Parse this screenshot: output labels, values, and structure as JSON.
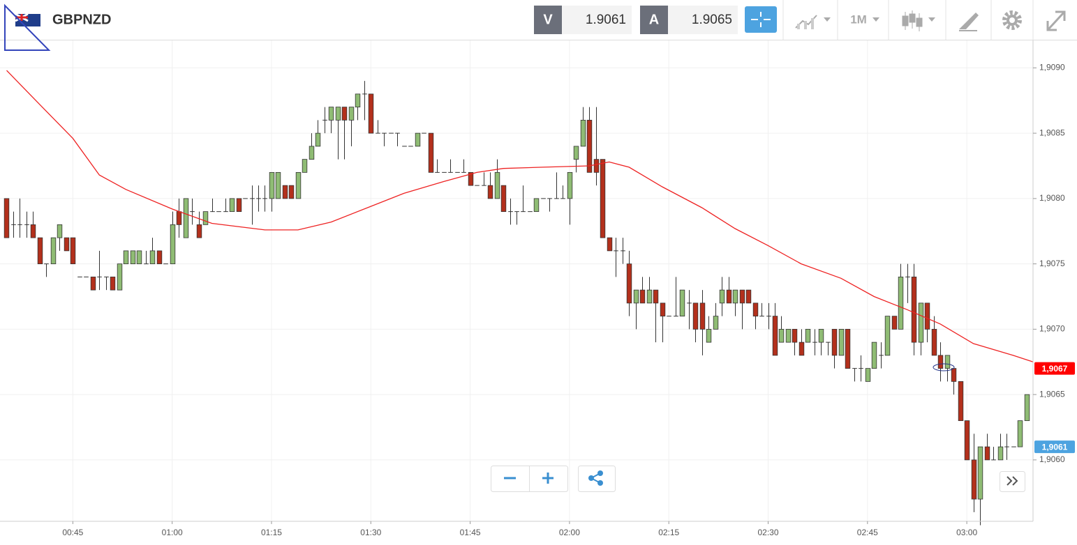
{
  "chart_data": {
    "type": "candlestick",
    "title": "GBPNZD",
    "bid": {
      "label": "V",
      "value": 1.9061
    },
    "ask": {
      "label": "A",
      "value": 1.9065
    },
    "timeframe": "1M",
    "grid": true,
    "up_color": "#8fbc74",
    "down_color": "#b3301c",
    "xlim": [
      "00:34",
      "03:10"
    ],
    "xticks": [
      "00:45",
      "01:00",
      "01:15",
      "01:30",
      "01:45",
      "02:00",
      "02:15",
      "02:30",
      "02:45",
      "03:00"
    ],
    "ylim": [
      1.90553,
      1.90921
    ],
    "yticks": [
      {
        "value": 1.906,
        "label": "1,9060"
      },
      {
        "value": 1.9065,
        "label": "1,9065"
      },
      {
        "value": 1.907,
        "label": "1,9070"
      },
      {
        "value": 1.9075,
        "label": "1,9075"
      },
      {
        "value": 1.908,
        "label": "1,9080"
      },
      {
        "value": 1.9085,
        "label": "1,9085"
      },
      {
        "value": 1.909,
        "label": "1,9090"
      }
    ],
    "price_tags": [
      {
        "value": 1.9067,
        "label": "1,9067",
        "color": "#ff0000"
      },
      {
        "value": 1.9061,
        "label": "1,9061",
        "color": "#4da3e0"
      }
    ],
    "x": [
      "00:35",
      "00:36",
      "00:37",
      "00:38",
      "00:39",
      "00:40",
      "00:41",
      "00:42",
      "00:43",
      "00:44",
      "00:45",
      "00:46",
      "00:47",
      "00:48",
      "00:49",
      "00:50",
      "00:51",
      "00:52",
      "00:53",
      "00:54",
      "00:55",
      "00:56",
      "00:57",
      "00:58",
      "00:59",
      "01:00",
      "01:01",
      "01:02",
      "01:03",
      "01:04",
      "01:05",
      "01:06",
      "01:07",
      "01:08",
      "01:09",
      "01:10",
      "01:11",
      "01:12",
      "01:13",
      "01:14",
      "01:15",
      "01:16",
      "01:17",
      "01:18",
      "01:19",
      "01:20",
      "01:21",
      "01:22",
      "01:23",
      "01:24",
      "01:25",
      "01:26",
      "01:27",
      "01:28",
      "01:29",
      "01:30",
      "01:31",
      "01:32",
      "01:33",
      "01:34",
      "01:35",
      "01:36",
      "01:37",
      "01:38",
      "01:39",
      "01:40",
      "01:41",
      "01:42",
      "01:43",
      "01:44",
      "01:45",
      "01:46",
      "01:47",
      "01:48",
      "01:49",
      "01:50",
      "01:51",
      "01:52",
      "01:53",
      "01:54",
      "01:55",
      "01:56",
      "01:57",
      "01:58",
      "01:59",
      "02:00",
      "02:01",
      "02:02",
      "02:03",
      "02:04",
      "02:05",
      "02:06",
      "02:07",
      "02:08",
      "02:09",
      "02:10",
      "02:11",
      "02:12",
      "02:13",
      "02:14",
      "02:15",
      "02:16",
      "02:17",
      "02:18",
      "02:19",
      "02:20",
      "02:21",
      "02:22",
      "02:23",
      "02:24",
      "02:25",
      "02:26",
      "02:27",
      "02:28",
      "02:29",
      "02:30",
      "02:31",
      "02:32",
      "02:33",
      "02:34",
      "02:35",
      "02:36",
      "02:37",
      "02:38",
      "02:39",
      "02:40",
      "02:41",
      "02:42",
      "02:43",
      "02:44",
      "02:45",
      "02:46",
      "02:47",
      "02:48",
      "02:49",
      "02:50",
      "02:51",
      "02:52",
      "02:53",
      "02:54",
      "02:55",
      "02:56",
      "02:57",
      "02:58",
      "02:59",
      "03:00",
      "03:01",
      "03:02",
      "03:03",
      "03:04",
      "03:05",
      "03:06",
      "03:07",
      "03:08",
      "03:09"
    ],
    "open": [
      1.908,
      1.9078,
      1.9078,
      1.9078,
      1.9078,
      1.9077,
      1.9075,
      1.9075,
      1.9077,
      1.9077,
      1.9077,
      1.9074,
      1.9074,
      1.9074,
      1.9074,
      1.9074,
      1.9074,
      1.9073,
      1.9075,
      1.9075,
      1.9075,
      1.9075,
      1.9075,
      1.9076,
      1.9075,
      1.9075,
      1.9079,
      1.9077,
      1.9079,
      1.9078,
      1.9078,
      1.9079,
      1.9079,
      1.9079,
      1.9079,
      1.908,
      1.908,
      1.908,
      1.908,
      1.908,
      1.908,
      1.908,
      1.9081,
      1.9081,
      1.908,
      1.9082,
      1.9083,
      1.9084,
      1.9086,
      1.9086,
      1.9086,
      1.9087,
      1.9086,
      1.9087,
      1.9088,
      1.9088,
      1.9085,
      1.9085,
      1.9085,
      1.9085,
      1.9084,
      1.9084,
      1.9084,
      1.9085,
      1.9085,
      1.9082,
      1.9082,
      1.9082,
      1.9082,
      1.9082,
      1.9082,
      1.9081,
      1.9081,
      1.9081,
      1.908,
      1.9081,
      1.9079,
      1.9079,
      1.9079,
      1.9079,
      1.9079,
      1.908,
      1.908,
      1.908,
      1.908,
      1.908,
      1.9083,
      1.9084,
      1.9086,
      1.9083,
      1.9083,
      1.9077,
      1.9076,
      1.9076,
      1.9075,
      1.9072,
      1.9073,
      1.9072,
      1.9073,
      1.9072,
      1.9071,
      1.9071,
      1.9071,
      1.9072,
      1.9072,
      1.9072,
      1.9069,
      1.907,
      1.9072,
      1.9073,
      1.9072,
      1.9073,
      1.9073,
      1.9072,
      1.9071,
      1.9071,
      1.9071,
      1.9069,
      1.9069,
      1.907,
      1.9069,
      1.9069,
      1.9069,
      1.9069,
      1.9069,
      1.907,
      1.9068,
      1.907,
      1.9067,
      1.9067,
      1.9066,
      1.9067,
      1.9068,
      1.9068,
      1.9071,
      1.907,
      1.9074,
      1.9074,
      1.9069,
      1.9072,
      1.907,
      1.9068,
      1.9067,
      1.9067,
      1.9066,
      1.9063,
      1.906,
      1.9057,
      1.9061,
      1.906,
      1.906,
      1.9061,
      1.9061,
      1.9061,
      1.9063
    ],
    "high": [
      1.908,
      1.9079,
      1.908,
      1.9079,
      1.9079,
      1.9077,
      1.9075,
      1.9077,
      1.9078,
      1.9077,
      1.9077,
      1.9074,
      1.9074,
      1.9074,
      1.9076,
      1.9074,
      1.9074,
      1.9075,
      1.9076,
      1.9076,
      1.9076,
      1.9076,
      1.9077,
      1.9076,
      1.9075,
      1.9079,
      1.908,
      1.908,
      1.908,
      1.9079,
      1.9079,
      1.908,
      1.9079,
      1.908,
      1.908,
      1.908,
      1.908,
      1.9081,
      1.9081,
      1.9081,
      1.9082,
      1.9082,
      1.9081,
      1.9081,
      1.9082,
      1.9083,
      1.9085,
      1.9086,
      1.9087,
      1.9087,
      1.9087,
      1.9087,
      1.9087,
      1.9088,
      1.9089,
      1.9088,
      1.9086,
      1.9085,
      1.9085,
      1.9085,
      1.9084,
      1.9084,
      1.9085,
      1.9085,
      1.9085,
      1.9083,
      1.9082,
      1.9083,
      1.9082,
      1.9083,
      1.9082,
      1.9081,
      1.9082,
      1.9082,
      1.9083,
      1.9081,
      1.908,
      1.9079,
      1.9081,
      1.9079,
      1.908,
      1.908,
      1.908,
      1.9082,
      1.9081,
      1.9082,
      1.9084,
      1.9087,
      1.9087,
      1.9087,
      1.9083,
      1.9077,
      1.9077,
      1.9077,
      1.9076,
      1.9073,
      1.9074,
      1.9074,
      1.9073,
      1.9072,
      1.9071,
      1.9074,
      1.9073,
      1.9073,
      1.9072,
      1.9073,
      1.9071,
      1.9072,
      1.9074,
      1.9074,
      1.9073,
      1.9073,
      1.9073,
      1.9072,
      1.9072,
      1.9072,
      1.9072,
      1.9071,
      1.907,
      1.907,
      1.907,
      1.907,
      1.907,
      1.907,
      1.9069,
      1.907,
      1.907,
      1.907,
      1.9067,
      1.9068,
      1.9067,
      1.9069,
      1.9069,
      1.9071,
      1.9071,
      1.9075,
      1.9075,
      1.9075,
      1.9072,
      1.9072,
      1.9071,
      1.9069,
      1.9068,
      1.9067,
      1.9066,
      1.9063,
      1.9062,
      1.9061,
      1.9062,
      1.9061,
      1.9062,
      1.9062,
      1.9061,
      1.9063,
      1.9065
    ],
    "low": [
      1.9077,
      1.9077,
      1.9077,
      1.9077,
      1.9077,
      1.9075,
      1.9074,
      1.9075,
      1.9076,
      1.9076,
      1.9075,
      1.9074,
      1.9074,
      1.9073,
      1.9073,
      1.9073,
      1.9073,
      1.9073,
      1.9075,
      1.9075,
      1.9075,
      1.9075,
      1.9075,
      1.9075,
      1.9075,
      1.9075,
      1.9077,
      1.9077,
      1.9078,
      1.9077,
      1.9078,
      1.9079,
      1.9079,
      1.9079,
      1.9079,
      1.9079,
      1.908,
      1.9078,
      1.9079,
      1.9079,
      1.9079,
      1.908,
      1.908,
      1.908,
      1.908,
      1.9082,
      1.9083,
      1.9084,
      1.9085,
      1.9085,
      1.9083,
      1.9083,
      1.9084,
      1.9086,
      1.9086,
      1.9085,
      1.9085,
      1.9084,
      1.9085,
      1.9084,
      1.9084,
      1.9084,
      1.9084,
      1.9085,
      1.9082,
      1.9082,
      1.9082,
      1.9082,
      1.9082,
      1.9082,
      1.9081,
      1.9081,
      1.9081,
      1.908,
      1.908,
      1.9079,
      1.9078,
      1.9078,
      1.9079,
      1.9079,
      1.9079,
      1.908,
      1.9079,
      1.908,
      1.908,
      1.9078,
      1.9082,
      1.9084,
      1.9082,
      1.9081,
      1.9077,
      1.9076,
      1.9074,
      1.9075,
      1.9071,
      1.907,
      1.9072,
      1.9072,
      1.9069,
      1.9069,
      1.9071,
      1.9071,
      1.9071,
      1.907,
      1.9069,
      1.9068,
      1.9069,
      1.907,
      1.9071,
      1.9072,
      1.9071,
      1.907,
      1.9072,
      1.907,
      1.9071,
      1.907,
      1.9068,
      1.9069,
      1.9069,
      1.9068,
      1.9068,
      1.9069,
      1.9068,
      1.9068,
      1.9068,
      1.9067,
      1.9068,
      1.9067,
      1.9066,
      1.9066,
      1.9066,
      1.9067,
      1.9067,
      1.9068,
      1.907,
      1.907,
      1.9072,
      1.9068,
      1.9068,
      1.9069,
      1.9068,
      1.9066,
      1.9066,
      1.9065,
      1.9063,
      1.906,
      1.9056,
      1.9055,
      1.906,
      1.906,
      1.906,
      1.906,
      1.9061,
      1.9061,
      1.9063
    ],
    "close": [
      1.9077,
      1.9078,
      1.9078,
      1.9078,
      1.9077,
      1.9075,
      1.9075,
      1.9077,
      1.9078,
      1.9076,
      1.9075,
      1.9074,
      1.9074,
      1.9073,
      1.9074,
      1.9074,
      1.9073,
      1.9075,
      1.9076,
      1.9076,
      1.9076,
      1.9075,
      1.9076,
      1.9075,
      1.9075,
      1.9078,
      1.9078,
      1.908,
      1.9079,
      1.9077,
      1.9079,
      1.9079,
      1.9079,
      1.9079,
      1.908,
      1.9079,
      1.908,
      1.908,
      1.908,
      1.908,
      1.9082,
      1.9082,
      1.908,
      1.908,
      1.9082,
      1.9083,
      1.9084,
      1.9085,
      1.9086,
      1.9087,
      1.9087,
      1.9086,
      1.9087,
      1.9088,
      1.9088,
      1.9085,
      1.9085,
      1.9085,
      1.9085,
      1.9085,
      1.9084,
      1.9084,
      1.9085,
      1.9085,
      1.9082,
      1.9082,
      1.9082,
      1.9082,
      1.9082,
      1.9082,
      1.9081,
      1.9081,
      1.9081,
      1.908,
      1.9082,
      1.9079,
      1.9079,
      1.9079,
      1.9079,
      1.9079,
      1.908,
      1.908,
      1.908,
      1.908,
      1.908,
      1.9082,
      1.9084,
      1.9086,
      1.9082,
      1.9082,
      1.9077,
      1.9076,
      1.9076,
      1.9076,
      1.9072,
      1.9073,
      1.9072,
      1.9073,
      1.9072,
      1.9071,
      1.9071,
      1.9071,
      1.9073,
      1.9072,
      1.907,
      1.907,
      1.907,
      1.9071,
      1.9073,
      1.9072,
      1.9073,
      1.9072,
      1.9072,
      1.9071,
      1.9071,
      1.9071,
      1.9068,
      1.907,
      1.907,
      1.9069,
      1.9068,
      1.907,
      1.9069,
      1.907,
      1.9069,
      1.9068,
      1.907,
      1.9067,
      1.9067,
      1.9067,
      1.9067,
      1.9069,
      1.9068,
      1.9071,
      1.907,
      1.9074,
      1.9074,
      1.9069,
      1.9072,
      1.907,
      1.9068,
      1.9067,
      1.9068,
      1.9066,
      1.9063,
      1.906,
      1.9057,
      1.9061,
      1.906,
      1.906,
      1.9061,
      1.9061,
      1.9061,
      1.9063,
      1.9065
    ],
    "moving_average": {
      "color": "#ee2222",
      "x": [
        "00:35",
        "00:40",
        "00:45",
        "00:49",
        "00:53",
        "01:00",
        "01:06",
        "01:14",
        "01:19",
        "01:24",
        "01:30",
        "01:35",
        "01:41",
        "01:46",
        "01:50",
        "01:56",
        "02:03",
        "02:06",
        "02:09",
        "02:14",
        "02:20",
        "02:25",
        "02:30",
        "02:35",
        "02:41",
        "02:46",
        "02:51",
        "02:56",
        "03:01",
        "03:07",
        "03:10"
      ],
      "values": [
        1.90898,
        1.90872,
        1.90846,
        1.90818,
        1.90807,
        1.90792,
        1.90781,
        1.90776,
        1.90776,
        1.90782,
        1.90794,
        1.90804,
        1.90813,
        1.9082,
        1.90823,
        1.90824,
        1.90825,
        1.90828,
        1.90824,
        1.90809,
        1.90793,
        1.90777,
        1.90764,
        1.9075,
        1.90739,
        1.90725,
        1.90715,
        1.90704,
        1.90689,
        1.9068,
        1.90675
      ]
    }
  }
}
